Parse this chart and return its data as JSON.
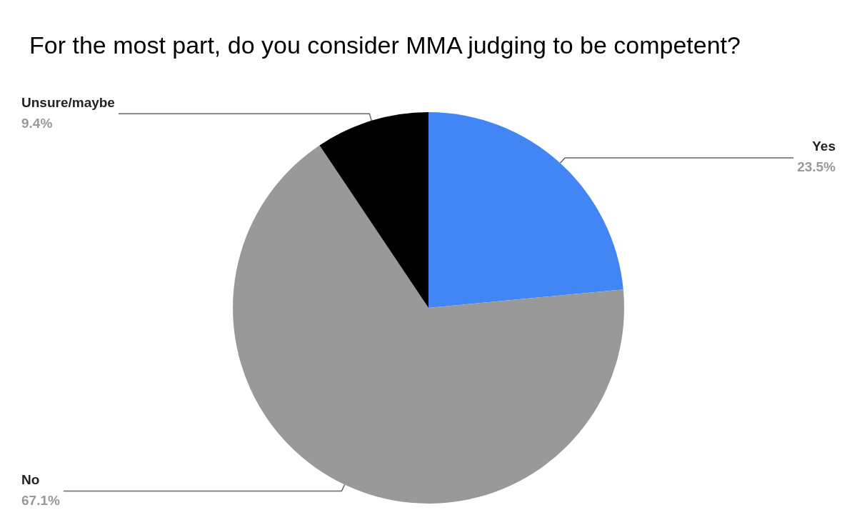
{
  "chart_data": {
    "type": "pie",
    "title": "For the most part, do you consider MMA judging to be competent?",
    "categories": [
      "Yes",
      "No",
      "Unsure/maybe"
    ],
    "values": [
      23.5,
      67.1,
      9.4
    ],
    "value_labels": [
      "23.5%",
      "67.1%",
      "9.4%"
    ],
    "colors": [
      "#4285f4",
      "#999999",
      "#000000"
    ],
    "legend": false
  }
}
